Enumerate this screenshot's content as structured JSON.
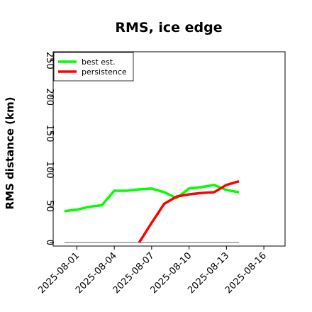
{
  "chart_data": {
    "type": "line",
    "title": "RMS, ice edge",
    "xlabel": "",
    "ylabel": "RMS distance (km)",
    "x_tick_labels": [
      "2025-08-01",
      "2025-08-04",
      "2025-08-07",
      "2025-08-10",
      "2025-08-13",
      "2025-08-16"
    ],
    "x_ticks": [
      1,
      4,
      7,
      10,
      13,
      16
    ],
    "xlim": [
      -0.9,
      17.7
    ],
    "ylim": [
      -5,
      262
    ],
    "y_ticks": [
      0,
      50,
      100,
      150,
      200,
      250
    ],
    "grid": false,
    "legend_position": "top-left",
    "series": [
      {
        "name": "best est.",
        "color": "#00ff00",
        "x": [
          0,
          1,
          2,
          3,
          4,
          5,
          6,
          7,
          8,
          9,
          10,
          11,
          12,
          13,
          14
        ],
        "y": [
          43,
          45,
          49,
          51,
          71,
          71,
          73,
          74,
          69,
          61,
          74,
          76,
          79,
          72,
          69
        ]
      },
      {
        "name": "persistence",
        "color": "#ff0000",
        "x": [
          6,
          7,
          8,
          9,
          10,
          11,
          12,
          13,
          14
        ],
        "y": [
          0,
          27,
          53,
          63,
          66,
          68,
          69,
          79,
          84
        ]
      }
    ],
    "zero_line": {
      "color": "#808080",
      "x": [
        0,
        14
      ],
      "y": 0
    }
  }
}
